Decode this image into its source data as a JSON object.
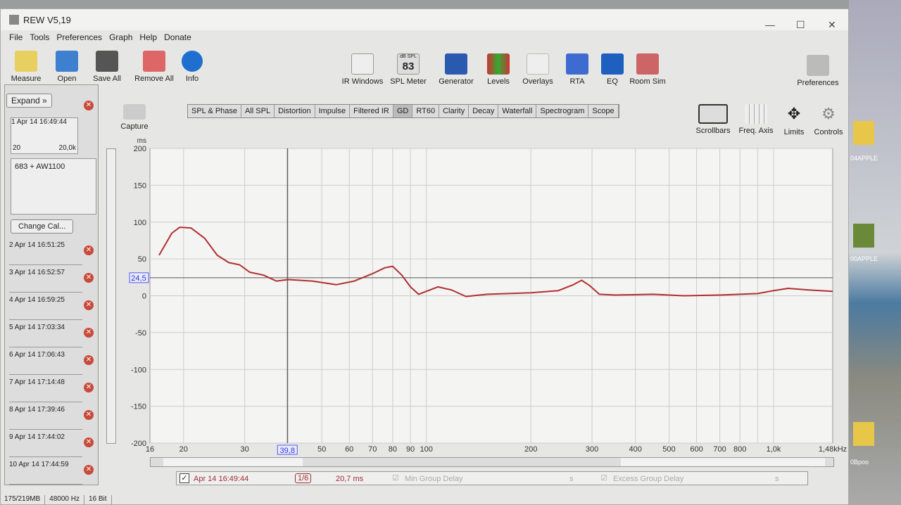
{
  "window": {
    "title": "REW V5,19",
    "minimize": "—",
    "maximize": "☐",
    "close": "✕"
  },
  "menu": [
    "File",
    "Tools",
    "Preferences",
    "Graph",
    "Help",
    "Donate"
  ],
  "toolbar_left": [
    "Measure",
    "Open",
    "Save All",
    "Remove All",
    "Info"
  ],
  "toolbar_center": [
    "IR Windows",
    "SPL Meter",
    "Generator",
    "Levels",
    "Overlays",
    "RTA",
    "EQ",
    "Room Sim"
  ],
  "spl_meter": {
    "unit": "dB SPL",
    "value": "83"
  },
  "preferences": "Preferences",
  "capture": "Capture",
  "tabs": [
    "SPL & Phase",
    "All SPL",
    "Distortion",
    "Impulse",
    "Filtered IR",
    "GD",
    "RT60",
    "Clarity",
    "Decay",
    "Waterfall",
    "Spectrogram",
    "Scope"
  ],
  "active_tab": "GD",
  "graph_controls": [
    "Scrollbars",
    "Freq. Axis",
    "Limits",
    "Controls"
  ],
  "left_panel": {
    "expand": "Expand",
    "selected": {
      "label": "1 Apr 14 16:49:44",
      "range_lo": "20",
      "range_hi": "20,0k",
      "notes": "683 + AW1100"
    },
    "change_cal": "Change Cal...",
    "measurements": [
      "2 Apr 14 16:51:25",
      "3 Apr 14 16:52:57",
      "4 Apr 14 16:59:25",
      "5 Apr 14 17:03:34",
      "6 Apr 14 17:06:43",
      "7 Apr 14 17:14:48",
      "8 Apr 14 17:39:46",
      "9 Apr 14 17:44:02",
      "10 Apr 14 17:44:59"
    ]
  },
  "chart_data": {
    "type": "line",
    "ylabel": "ms",
    "ylim": [
      -200,
      200
    ],
    "yticks": [
      200,
      150,
      100,
      50,
      0,
      -50,
      -100,
      -150,
      -200
    ],
    "xscale": "log",
    "xlim": [
      16,
      1480
    ],
    "xticks": [
      {
        "v": 16,
        "l": "16"
      },
      {
        "v": 20,
        "l": "20"
      },
      {
        "v": 30,
        "l": "30"
      },
      {
        "v": 50,
        "l": "50"
      },
      {
        "v": 60,
        "l": "60"
      },
      {
        "v": 70,
        "l": "70"
      },
      {
        "v": 80,
        "l": "80"
      },
      {
        "v": 90,
        "l": "90"
      },
      {
        "v": 100,
        "l": "100"
      },
      {
        "v": 200,
        "l": "200"
      },
      {
        "v": 300,
        "l": "300"
      },
      {
        "v": 400,
        "l": "400"
      },
      {
        "v": 500,
        "l": "500"
      },
      {
        "v": 600,
        "l": "600"
      },
      {
        "v": 700,
        "l": "700"
      },
      {
        "v": 800,
        "l": "800"
      },
      {
        "v": 1000,
        "l": "1,0k"
      },
      {
        "v": 1480,
        "l": "1,48kHz"
      }
    ],
    "cursor": {
      "x": 39.8,
      "x_label": "39,8",
      "y": 24.5,
      "y_label": "24,5"
    },
    "series": [
      {
        "color": "#b03030",
        "points": [
          [
            17,
            55
          ],
          [
            18.5,
            85
          ],
          [
            19.5,
            93
          ],
          [
            21,
            92
          ],
          [
            23,
            78
          ],
          [
            25,
            55
          ],
          [
            27,
            45
          ],
          [
            29,
            42
          ],
          [
            31,
            32
          ],
          [
            34,
            28
          ],
          [
            37,
            20
          ],
          [
            40,
            22
          ],
          [
            47,
            20
          ],
          [
            55,
            15
          ],
          [
            62,
            20
          ],
          [
            70,
            30
          ],
          [
            76,
            38
          ],
          [
            80,
            40
          ],
          [
            85,
            28
          ],
          [
            90,
            12
          ],
          [
            95,
            2
          ],
          [
            100,
            6
          ],
          [
            108,
            12
          ],
          [
            118,
            8
          ],
          [
            130,
            -1
          ],
          [
            150,
            2
          ],
          [
            200,
            4
          ],
          [
            240,
            7
          ],
          [
            265,
            15
          ],
          [
            280,
            21
          ],
          [
            295,
            14
          ],
          [
            315,
            2
          ],
          [
            350,
            1
          ],
          [
            450,
            2
          ],
          [
            550,
            0
          ],
          [
            700,
            1
          ],
          [
            900,
            3
          ],
          [
            1000,
            7
          ],
          [
            1100,
            10
          ],
          [
            1250,
            8
          ],
          [
            1480,
            6
          ]
        ]
      }
    ],
    "grid": true
  },
  "bottom": {
    "measurement": "Apr 14 16:49:44",
    "smoothing": "1/6",
    "value": "20,7 ms",
    "min_gd": "Min Group Delay",
    "min_unit": "s",
    "excess_gd": "Excess Group Delay",
    "excess_unit": "s"
  },
  "status": [
    "175/219MB",
    "48000 Hz",
    "16 Bit"
  ],
  "desktop": [
    "04APPLE",
    "00APPLE",
    "0Bpoo"
  ]
}
